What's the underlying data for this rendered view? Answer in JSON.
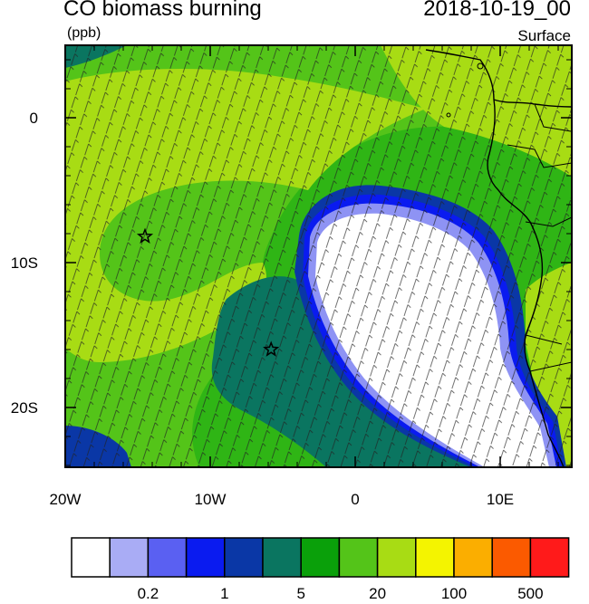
{
  "header": {
    "title": "CO biomass burning",
    "datetime": "2018-10-19_00",
    "units": "(ppb)",
    "level": "Surface"
  },
  "axes": {
    "x_ticks": [
      {
        "value": -20,
        "label": "20W"
      },
      {
        "value": -10,
        "label": "10W"
      },
      {
        "value": 0,
        "label": "0"
      },
      {
        "value": 10,
        "label": "10E"
      }
    ],
    "y_ticks": [
      {
        "value": 0,
        "label": "0"
      },
      {
        "value": -10,
        "label": "10S"
      },
      {
        "value": -20,
        "label": "20S"
      }
    ],
    "lon_range": [
      -20,
      15
    ],
    "lat_range": [
      -24.5,
      4.8
    ]
  },
  "markers": [
    {
      "name": "site-marker-1",
      "lon": -14.5,
      "lat": -8.2,
      "symbol": "star"
    },
    {
      "name": "site-marker-2",
      "lon": -5.8,
      "lat": -16.0,
      "symbol": "star"
    }
  ],
  "colorbar": {
    "colors": [
      "#ffffff",
      "#a9acf5",
      "#5a60f2",
      "#0a1bf0",
      "#0a37a6",
      "#0a7560",
      "#0aa00a",
      "#54c419",
      "#a8dc14",
      "#f4f400",
      "#fbae00",
      "#fb5a00",
      "#ff1a1a"
    ],
    "labels": [
      {
        "after_box": 1,
        "text": "0.2"
      },
      {
        "after_box": 3,
        "text": "1"
      },
      {
        "after_box": 5,
        "text": "5"
      },
      {
        "after_box": 7,
        "text": "20"
      },
      {
        "after_box": 9,
        "text": "100"
      },
      {
        "after_box": 11,
        "text": "500"
      }
    ]
  }
}
